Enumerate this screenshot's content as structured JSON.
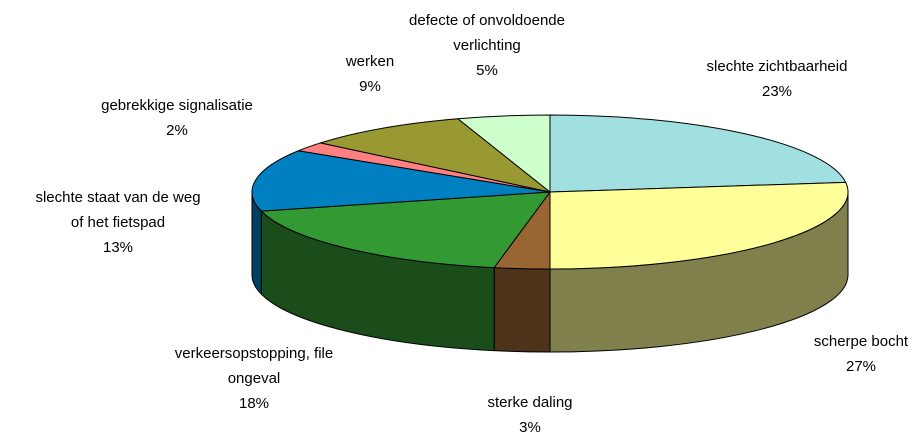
{
  "chart_data": {
    "type": "pie3d",
    "categories": [
      "slechte zichtbaarheid",
      "scherpe bocht",
      "sterke daling",
      "verkeersopstopping, file\nongeval",
      "slechte staat van de weg\nof het fietspad",
      "gebrekkige signalisatie",
      "werken",
      "defecte of onvoldoende\nverlichting"
    ],
    "values": [
      23,
      27,
      3,
      18,
      13,
      2,
      9,
      5
    ],
    "value_labels": [
      "23%",
      "27%",
      "3%",
      "18%",
      "13%",
      "2%",
      "9%",
      "5%"
    ],
    "colors": [
      "#a0e0e0",
      "#ffff99",
      "#996633",
      "#339933",
      "#0080c0",
      "#ff8080",
      "#999933",
      "#ccffcc"
    ]
  }
}
